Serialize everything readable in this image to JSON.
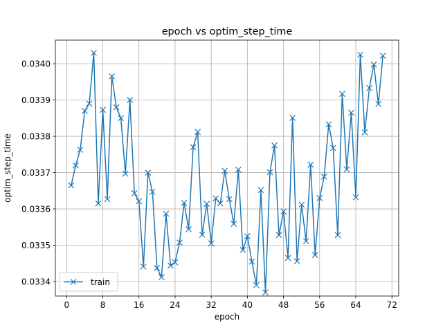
{
  "chart_data": {
    "type": "line",
    "title": "epoch vs optim_step_time",
    "xlabel": "epoch",
    "ylabel": "optim_step_time",
    "xlim": [
      -2.5,
      73.5
    ],
    "ylim": [
      0.03336,
      0.034065
    ],
    "xticks": [
      0,
      8,
      16,
      24,
      32,
      40,
      48,
      56,
      64,
      72
    ],
    "xtick_labels": [
      "0",
      "8",
      "16",
      "24",
      "32",
      "40",
      "48",
      "56",
      "64",
      "72"
    ],
    "yticks": [
      0.0334,
      0.0335,
      0.0336,
      0.0337,
      0.0338,
      0.0339,
      0.034
    ],
    "ytick_labels": [
      "0.0334",
      "0.0335",
      "0.0336",
      "0.0337",
      "0.0338",
      "0.0339",
      "0.0340"
    ],
    "grid": true,
    "legend_position": "lower-left",
    "series": [
      {
        "name": "train",
        "color": "#1f77b4",
        "marker": "x",
        "x": [
          1,
          2,
          3,
          4,
          5,
          6,
          7,
          8,
          9,
          10,
          11,
          12,
          13,
          14,
          15,
          16,
          17,
          18,
          19,
          20,
          21,
          22,
          23,
          24,
          25,
          26,
          27,
          28,
          29,
          30,
          31,
          32,
          33,
          34,
          35,
          36,
          37,
          38,
          39,
          40,
          41,
          42,
          43,
          44,
          45,
          46,
          47,
          48,
          49,
          50,
          51,
          52,
          53,
          54,
          55,
          56,
          57,
          58,
          59,
          60,
          61,
          62,
          63,
          64,
          65,
          66,
          67,
          68,
          69,
          70
        ],
        "y": [
          0.033665,
          0.03372,
          0.033763,
          0.03387,
          0.03389,
          0.03403,
          0.033615,
          0.033873,
          0.033627,
          0.033965,
          0.03388,
          0.03385,
          0.033697,
          0.0339,
          0.033643,
          0.033621,
          0.033441,
          0.0337,
          0.033647,
          0.033437,
          0.033412,
          0.033587,
          0.033444,
          0.033453,
          0.033507,
          0.033617,
          0.033544,
          0.03377,
          0.033812,
          0.033529,
          0.033614,
          0.033505,
          0.033629,
          0.033615,
          0.033705,
          0.033627,
          0.033559,
          0.033708,
          0.033487,
          0.033525,
          0.033455,
          0.03339,
          0.033652,
          0.03337,
          0.033701,
          0.033775,
          0.033528,
          0.033593,
          0.033465,
          0.033851,
          0.033456,
          0.033612,
          0.033511,
          0.033722,
          0.033473,
          0.03363,
          0.033689,
          0.033833,
          0.033768,
          0.033528,
          0.033917,
          0.033709,
          0.033865,
          0.033632,
          0.034025,
          0.033811,
          0.033933,
          0.033998,
          0.033889,
          0.034022
        ]
      }
    ]
  }
}
